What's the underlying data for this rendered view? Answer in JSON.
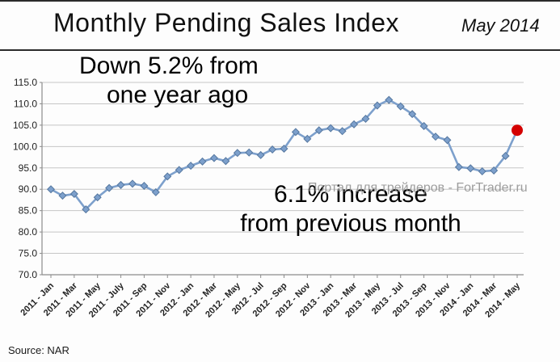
{
  "header": {
    "title": "Monthly Pending Sales Index",
    "subtitle": "May 2014"
  },
  "annotations": {
    "down": [
      "Down 5.2% from",
      "one year ago"
    ],
    "up": [
      "6.1% increase",
      "from previous month"
    ]
  },
  "watermark": "Портал для трейдеров - ForTrader.ru",
  "source": "Source: NAR",
  "colors": {
    "line": "#7da0cc",
    "marker_edge": "#55779f",
    "grid": "#c6c6c6",
    "axis": "#8c8c8c",
    "highlight": "#d40000",
    "tick_text": "#222222"
  },
  "chart_data": {
    "type": "line",
    "title": "Monthly Pending Sales Index",
    "x": [
      "2011-Jan",
      "2011-Feb",
      "2011-Mar",
      "2011-Apr",
      "2011-May",
      "2011-Jun",
      "2011-Jul",
      "2011-Aug",
      "2011-Sep",
      "2011-Oct",
      "2011-Nov",
      "2011-Dec",
      "2012-Jan",
      "2012-Feb",
      "2012-Mar",
      "2012-Apr",
      "2012-May",
      "2012-Jun",
      "2012-Jul",
      "2012-Aug",
      "2012-Sep",
      "2012-Oct",
      "2012-Nov",
      "2012-Dec",
      "2013-Jan",
      "2013-Feb",
      "2013-Mar",
      "2013-Apr",
      "2013-May",
      "2013-Jun",
      "2013-Jul",
      "2013-Aug",
      "2013-Sep",
      "2013-Oct",
      "2013-Nov",
      "2013-Dec",
      "2014-Jan",
      "2014-Feb",
      "2014-Mar",
      "2014-Apr",
      "2014-May"
    ],
    "values": [
      90.0,
      88.5,
      88.9,
      85.3,
      88.1,
      90.3,
      91.0,
      91.3,
      90.8,
      89.3,
      93.0,
      94.5,
      95.5,
      96.5,
      97.3,
      96.6,
      98.5,
      98.6,
      98.0,
      99.3,
      99.5,
      103.4,
      101.8,
      103.8,
      104.3,
      103.6,
      105.2,
      106.5,
      109.6,
      110.9,
      109.4,
      107.6,
      104.8,
      102.3,
      101.5,
      95.2,
      94.9,
      94.2,
      94.4,
      97.8,
      103.8
    ],
    "xtick_labels": [
      "2011 - Jan",
      "2011 - Mar",
      "2011 - May",
      "2011 - July",
      "2011 - Sep",
      "2011 - Nov",
      "2012 - Jan",
      "2012 - Mar",
      "2012 - May",
      "2012 - Jul",
      "2012 - Sep",
      "2012 - Nov",
      "2013 - Jan",
      "2013 - Mar",
      "2013 - May",
      "2013 - Jul",
      "2013 - Sep",
      "2013 - Nov",
      "2014 - Jan",
      "2014 - Mar",
      "2014 - May"
    ],
    "ytick_labels": [
      "70.0",
      "75.0",
      "80.0",
      "85.0",
      "90.0",
      "95.0",
      "100.0",
      "105.0",
      "110.0",
      "115.0"
    ],
    "ylim": [
      70,
      115
    ],
    "grid": true,
    "legend_position": "none",
    "highlight_last_point": true
  }
}
